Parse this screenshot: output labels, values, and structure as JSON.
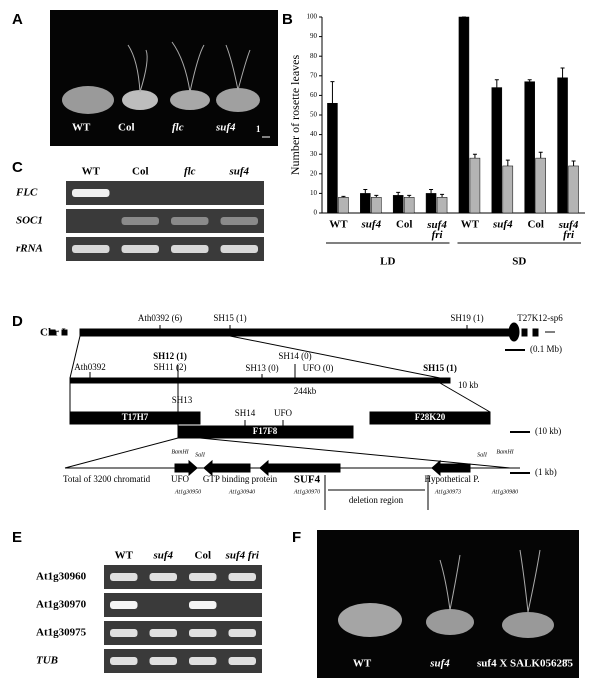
{
  "panel_labels": [
    "A",
    "B",
    "C",
    "D",
    "E",
    "F"
  ],
  "panel_a": {
    "labels": [
      "WT",
      "Col",
      "flc",
      "suf4"
    ],
    "scale": "1"
  },
  "chart_data": {
    "type": "bar",
    "y_label": "Number of rosette leaves",
    "categories": [
      "WT",
      "suf4",
      "Col",
      "suf4 fri",
      "WT",
      "suf4",
      "Col",
      "suf4 fri"
    ],
    "groups": [
      "LD",
      "SD"
    ],
    "series": [
      {
        "color": "#000000",
        "values": [
          56,
          10,
          9,
          10,
          100,
          64,
          67,
          69
        ],
        "errors": [
          11,
          2,
          1.5,
          2,
          0,
          4,
          1,
          5
        ]
      },
      {
        "color": "#b4b4b4",
        "values": [
          8,
          8,
          8,
          8,
          28,
          24,
          28,
          24
        ],
        "errors": [
          0.5,
          1,
          1,
          1.5,
          2,
          3,
          3,
          2.5
        ]
      }
    ],
    "ylim": [
      0,
      100
    ],
    "yticks": [
      0,
      10,
      20,
      30,
      40,
      50,
      60,
      70,
      80,
      90,
      100
    ]
  },
  "panel_c": {
    "lanes": [
      "WT",
      "Col",
      "flc",
      "suf4"
    ],
    "rows": [
      "FLC",
      "SOC1",
      "rRNA"
    ]
  },
  "panel_d": {
    "labels": [
      "Chr I",
      "Ath0392 (6)",
      "SH15 (1)",
      "SH19 (1)",
      "T27K12-sp6",
      "(0.1 Mb)",
      "Ath0392",
      "SH11 (2)",
      "SH12 (1)",
      "SH14 (0)",
      "SH13 (0)",
      "UFO (0)",
      "SH15 (1)",
      "10 kb",
      "244kb",
      "T17H7",
      "SH13",
      "SH14",
      "UFO",
      "F17F8",
      "F28K20",
      "(10 kb)",
      "BamHI",
      "SalI",
      "SalI",
      "BamHI",
      "Total of 3200 chromatid",
      "UFO",
      "GTP binding protein",
      "SUF4",
      "Hypothetical P.",
      "(1 kb)",
      "At1g30950",
      "At1g30940",
      "At1g30970",
      "At1g30973",
      "At1g30980",
      "deletion region"
    ]
  },
  "panel_e": {
    "lanes": [
      "WT",
      "suf4",
      "Col",
      "suf4 fri"
    ],
    "rows": [
      "At1g30960",
      "At1g30970",
      "At1g30975",
      "TUB"
    ]
  },
  "panel_f": {
    "labels": [
      "WT",
      "suf4",
      "suf4 X SALK056285"
    ]
  }
}
